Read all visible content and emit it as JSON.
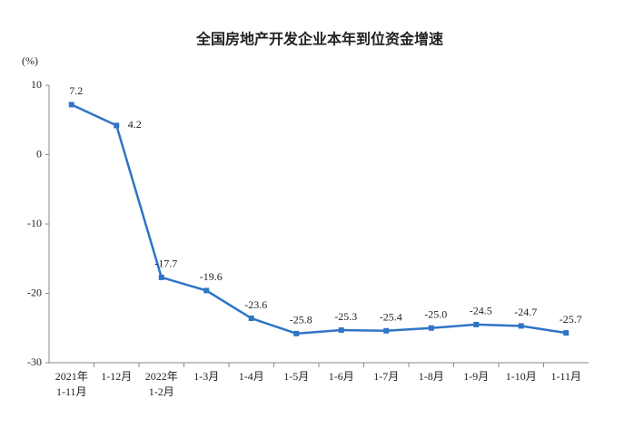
{
  "chart_data": {
    "type": "line",
    "title": "全国房地产开发企业本年到位资金增速",
    "y_label": "(%)",
    "categories": [
      "2021年\n1-11月",
      "1-12月",
      "2022年\n1-2月",
      "1-3月",
      "1-4月",
      "1-5月",
      "1-6月",
      "1-7月",
      "1-8月",
      "1-9月",
      "1-10月",
      "1-11月"
    ],
    "values": [
      7.2,
      4.2,
      -17.7,
      -19.6,
      -23.6,
      -25.8,
      -25.3,
      -25.4,
      -25.0,
      -24.5,
      -24.7,
      -25.7
    ],
    "value_labels": [
      "7.2",
      "4.2",
      "-17.7",
      "-19.6",
      "-23.6",
      "-25.8",
      "-25.3",
      "-25.4",
      "-25.0",
      "-24.5",
      "-24.7",
      "-25.7"
    ],
    "color": "#2f74c6",
    "ylim": [
      -30,
      10
    ],
    "yticks": [
      10,
      0,
      -10,
      -20,
      -30
    ],
    "grid": false
  }
}
